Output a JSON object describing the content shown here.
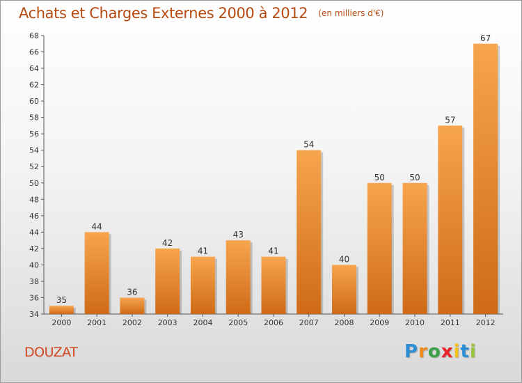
{
  "chart_data": {
    "type": "bar",
    "title": "Achats et Charges Externes 2000 à 2012",
    "unit": "(en milliers d'€)",
    "xlabel": "",
    "ylabel": "",
    "categories": [
      "2000",
      "2001",
      "2002",
      "2003",
      "2004",
      "2005",
      "2006",
      "2007",
      "2008",
      "2009",
      "2010",
      "2011",
      "2012"
    ],
    "values": [
      35,
      44,
      36,
      42,
      41,
      43,
      41,
      54,
      40,
      50,
      50,
      57,
      67
    ],
    "ylim": [
      34,
      68
    ],
    "yticks": [
      "34",
      "36",
      "38",
      "40",
      "42",
      "44",
      "46",
      "48",
      "50",
      "52",
      "54",
      "56",
      "58",
      "60",
      "62",
      "64",
      "66",
      "68"
    ],
    "grid": false,
    "legend": "none",
    "bar_color_top": "#f7a54e",
    "bar_color_bottom": "#cf6a17"
  },
  "commune": "DOUZAT",
  "logo": {
    "letters": [
      "P",
      "r",
      "o",
      "x",
      "i",
      "t",
      "i"
    ],
    "colors": [
      "#2c8fd6",
      "#f08a1c",
      "#3aa34a",
      "#e8242a",
      "#f6c21a",
      "#2c8fd6",
      "#9ac43a"
    ]
  },
  "colors": {
    "title": "#b64a10",
    "commune": "#d0461e",
    "axis": "#555555"
  }
}
